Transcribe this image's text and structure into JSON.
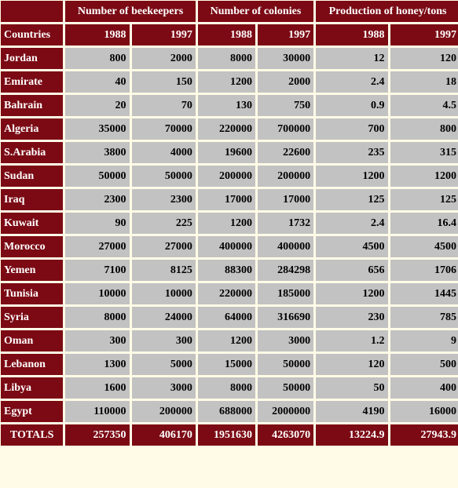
{
  "chart_data": {
    "type": "table",
    "columns": [
      {
        "group": "Number of beekeepers",
        "year": "1988"
      },
      {
        "group": "Number of beekeepers",
        "year": "1997"
      },
      {
        "group": "Number of colonies",
        "year": "1988"
      },
      {
        "group": "Number of colonies",
        "year": "1997"
      },
      {
        "group": "Production of honey/tons",
        "year": "1988"
      },
      {
        "group": "Production of honey/tons",
        "year": "1997"
      }
    ],
    "groups": [
      "Number of beekeepers",
      "Number of colonies",
      "Production of honey/tons"
    ],
    "row_header": "Countries",
    "rows": [
      {
        "country": "Jordan",
        "values": [
          "800",
          "2000",
          "8000",
          "30000",
          "12",
          "120"
        ]
      },
      {
        "country": "Emirate",
        "values": [
          "40",
          "150",
          "1200",
          "2000",
          "2.4",
          "18"
        ]
      },
      {
        "country": "Bahrain",
        "values": [
          "20",
          "70",
          "130",
          "750",
          "0.9",
          "4.5"
        ]
      },
      {
        "country": "Algeria",
        "values": [
          "35000",
          "70000",
          "220000",
          "700000",
          "700",
          "800"
        ]
      },
      {
        "country": "S.Arabia",
        "values": [
          "3800",
          "4000",
          "19600",
          "22600",
          "235",
          "315"
        ]
      },
      {
        "country": "Sudan",
        "values": [
          "50000",
          "50000",
          "200000",
          "200000",
          "1200",
          "1200"
        ]
      },
      {
        "country": "Iraq",
        "values": [
          "2300",
          "2300",
          "17000",
          "17000",
          "125",
          "125"
        ]
      },
      {
        "country": "Kuwait",
        "values": [
          "90",
          "225",
          "1200",
          "1732",
          "2.4",
          "16.4"
        ]
      },
      {
        "country": "Morocco",
        "values": [
          "27000",
          "27000",
          "400000",
          "400000",
          "4500",
          "4500"
        ]
      },
      {
        "country": "Yemen",
        "values": [
          "7100",
          "8125",
          "88300",
          "284298",
          "656",
          "1706"
        ]
      },
      {
        "country": "Tunisia",
        "values": [
          "10000",
          "10000",
          "220000",
          "185000",
          "1200",
          "1445"
        ]
      },
      {
        "country": "Syria",
        "values": [
          "8000",
          "24000",
          "64000",
          "316690",
          "230",
          "785"
        ]
      },
      {
        "country": "Oman",
        "values": [
          "300",
          "300",
          "1200",
          "3000",
          "1.2",
          "9"
        ]
      },
      {
        "country": "Lebanon",
        "values": [
          "1300",
          "5000",
          "15000",
          "50000",
          "120",
          "500"
        ]
      },
      {
        "country": "Libya",
        "values": [
          "1600",
          "3000",
          "8000",
          "50000",
          "50",
          "400"
        ]
      },
      {
        "country": "Egypt",
        "values": [
          "110000",
          "200000",
          "688000",
          "2000000",
          "4190",
          "16000"
        ]
      }
    ],
    "totals": {
      "label": "TOTALS",
      "values": [
        "257350",
        "406170",
        "1951630",
        "4263070",
        "13224.9",
        "27943.9"
      ]
    }
  },
  "colors": {
    "header_bg": "#7b0a14",
    "header_text": "#ffffff",
    "cell_bg": "#c2c2c2",
    "page_bg": "#fffbe6"
  }
}
